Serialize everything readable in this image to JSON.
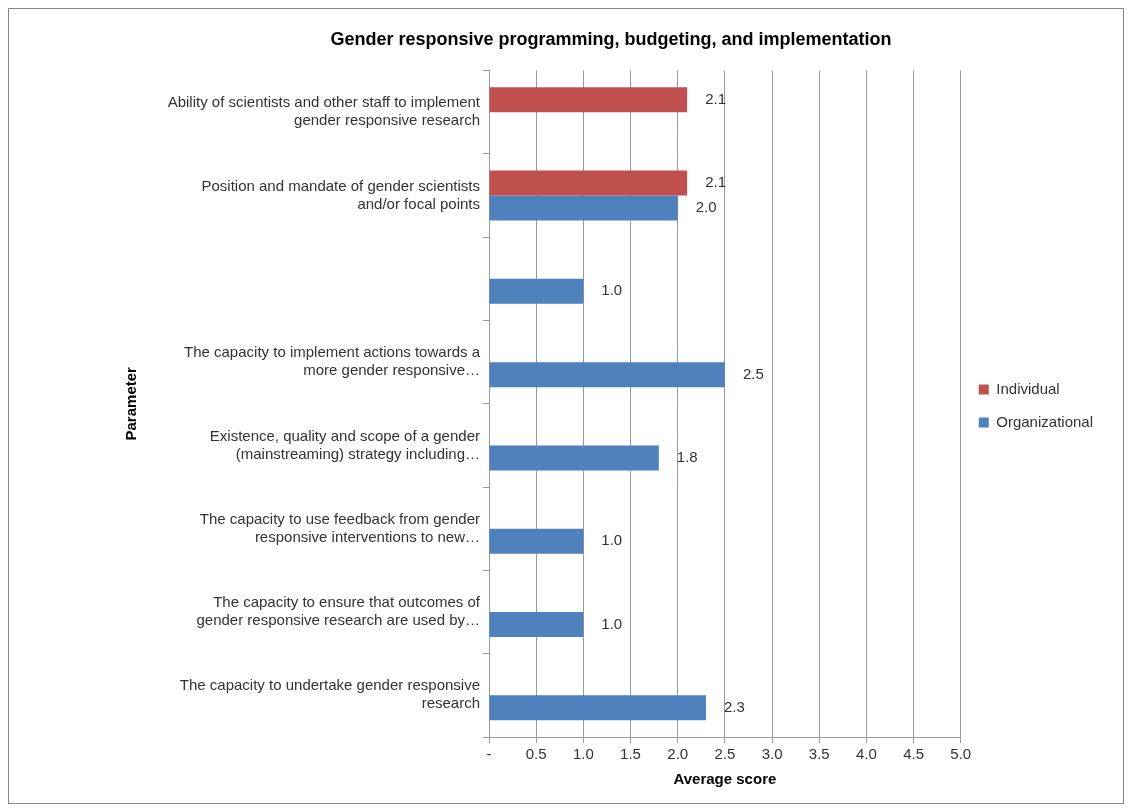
{
  "chart_data": {
    "type": "bar",
    "orientation": "horizontal",
    "title": "Gender responsive programming, budgeting, and implementation",
    "xlabel": "Average score",
    "ylabel": "Parameter",
    "categories": [
      "Ability of scientists and other staff to implement gender responsive research",
      "Position and mandate of gender scientists and/or focal points",
      null,
      "The capacity to implement actions towards a more gender responsive…",
      "Existence, quality and scope of a gender (mainstreaming) strategy including…",
      "The capacity to use feedback from gender responsive interventions to new…",
      "The capacity to ensure that outcomes of gender responsive research are used by…",
      "The capacity to undertake gender responsive research"
    ],
    "series": [
      {
        "name": "Individual",
        "color": "#c0504d",
        "values": [
          2.1,
          2.1,
          null,
          null,
          null,
          null,
          null,
          null
        ],
        "value_labels": [
          "2.1",
          "2.1",
          null,
          null,
          null,
          null,
          null,
          null
        ]
      },
      {
        "name": "Organizational",
        "color": "#4f81bd",
        "values": [
          null,
          2.0,
          1.0,
          2.5,
          1.8,
          1.0,
          1.0,
          2.3
        ],
        "value_labels": [
          null,
          "2.0",
          "1.0",
          "2.5",
          "1.8",
          "1.0",
          "1.0",
          "2.3"
        ]
      }
    ],
    "xlim": [
      0,
      5
    ],
    "xticks": [
      {
        "value": 0,
        "label": "-"
      },
      0.5,
      {
        "value": 1,
        "label": "1.0"
      },
      1.5,
      {
        "value": 2,
        "label": "2.0"
      },
      2.5,
      {
        "value": 3,
        "label": "3.0"
      },
      3.5,
      {
        "value": 4,
        "label": "4.0"
      },
      4.5,
      {
        "value": 5,
        "label": "5.0"
      }
    ],
    "grid": "x",
    "legend": "right"
  }
}
